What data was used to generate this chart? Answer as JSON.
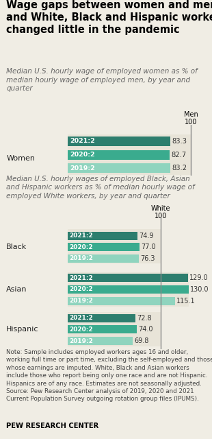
{
  "title": "Wage gaps between women and men\nand White, Black and Hispanic workers\nchanged little in the pandemic",
  "subtitle1": "Median U.S. hourly wage of employed women as % of\nmedian hourly wage of employed men, by year and\nquarter",
  "subtitle2": "Median U.S. hourly wages of employed Black, Asian\nand Hispanic workers as % of median hourly wage of\nemployed White workers, by year and quarter",
  "note": "Note: Sample includes employed workers ages 16 and older,\nworking full time or part time, excluding the self-employed and those\nwhose earnings are imputed. White, Black and Asian workers\ninclude those who report being only one race and are not Hispanic.\nHispanics are of any race. Estimates are not seasonally adjusted.\nSource: Pew Research Center analysis of 2019, 2020 and 2021\nCurrent Population Survey outgoing rotation group files (IPUMS).",
  "footer": "PEW RESEARCH CENTER",
  "year_labels": [
    "2021:2",
    "2020:2",
    "2019:2"
  ],
  "women_values": [
    83.3,
    82.7,
    83.2
  ],
  "bar_colors": [
    "#2d7e6e",
    "#3aab8e",
    "#8fd4be"
  ],
  "men_ref_label": "Men\n100",
  "black_values": [
    74.9,
    77.0,
    76.3
  ],
  "asian_values": [
    129.0,
    130.0,
    115.1
  ],
  "hispanic_values": [
    72.8,
    74.0,
    69.8
  ],
  "white_ref_label": "White\n100",
  "bg_color": "#f0ede4",
  "bar_area_bg": "#e8e4d8",
  "ref_line_color": "#888888",
  "label_color": "#333333",
  "group_label_color": "#222222",
  "subtitle_color": "#666666",
  "note_color": "#444444"
}
